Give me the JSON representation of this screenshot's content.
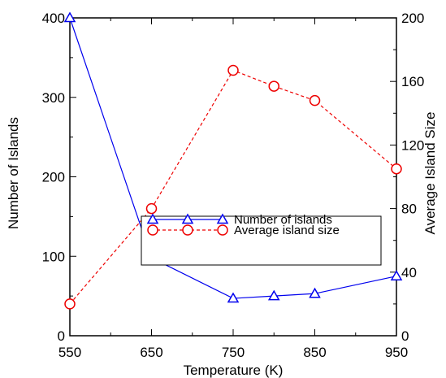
{
  "chart_data": {
    "type": "line",
    "xlabel": "Temperature (K)",
    "ylabel": "Number of Islands",
    "y2label": "Average Island Size",
    "xlim": [
      550,
      950
    ],
    "ylim": [
      0,
      400
    ],
    "y2lim": [
      0,
      200
    ],
    "x_ticks": [
      "550",
      "650",
      "750",
      "850",
      "950"
    ],
    "y_ticks": [
      "0",
      "100",
      "200",
      "300",
      "400"
    ],
    "y2_ticks": [
      "0",
      "40",
      "80",
      "120",
      "160",
      "200"
    ],
    "grid": false,
    "legend_position": "center-right",
    "series": [
      {
        "name": "Number of islands",
        "axis": "left",
        "color": "#0000ee",
        "line_style": "solid",
        "marker": "triangle",
        "x": [
          550,
          650,
          750,
          800,
          850,
          950
        ],
        "y": [
          400,
          98,
          47,
          50,
          53,
          75
        ]
      },
      {
        "name": "Average island size",
        "axis": "right",
        "color": "#ee0000",
        "line_style": "dashed",
        "marker": "circle",
        "x": [
          550,
          650,
          750,
          800,
          850,
          950
        ],
        "y": [
          20,
          80,
          167,
          157,
          148,
          105
        ]
      }
    ]
  }
}
